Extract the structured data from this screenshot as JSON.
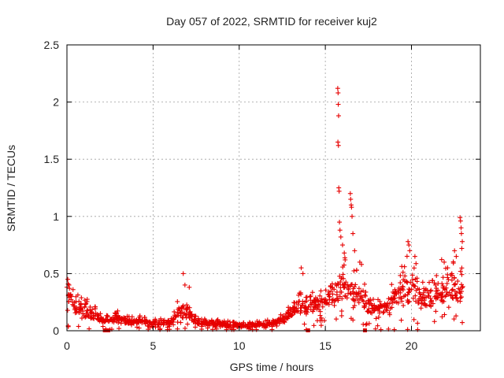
{
  "chart_data": {
    "type": "scatter",
    "title": "Day 057 of 2022, SRMTID for receiver kuj2",
    "xlabel": "GPS time / hours",
    "ylabel": "SRMTID / TECUs",
    "xlim": [
      0,
      24
    ],
    "ylim": [
      0,
      2.5
    ],
    "xticks": [
      0,
      5,
      10,
      15,
      20
    ],
    "yticks": [
      0,
      0.5,
      1,
      1.5,
      2,
      2.5
    ],
    "xtick_labels": [
      "0",
      "5",
      "10",
      "15",
      "20"
    ],
    "ytick_labels": [
      "0",
      "0.5",
      "1",
      "1.5",
      "2",
      "2.5"
    ],
    "grid": true,
    "series": [
      {
        "name": "SRMTID",
        "marker": "+",
        "color": "#e60000",
        "envelope": [
          [
            0.0,
            0.18,
            0.36
          ],
          [
            0.5,
            0.15,
            0.28
          ],
          [
            1.0,
            0.12,
            0.22
          ],
          [
            1.5,
            0.1,
            0.18
          ],
          [
            2.0,
            0.08,
            0.12
          ],
          [
            2.5,
            0.07,
            0.1
          ],
          [
            3.0,
            0.08,
            0.14
          ],
          [
            3.5,
            0.06,
            0.1
          ],
          [
            4.0,
            0.06,
            0.1
          ],
          [
            4.5,
            0.06,
            0.1
          ],
          [
            5.0,
            0.05,
            0.08
          ],
          [
            5.5,
            0.05,
            0.1
          ],
          [
            6.0,
            0.05,
            0.08
          ],
          [
            6.5,
            0.12,
            0.25
          ],
          [
            7.0,
            0.1,
            0.2
          ],
          [
            7.5,
            0.06,
            0.1
          ],
          [
            8.0,
            0.05,
            0.08
          ],
          [
            8.5,
            0.05,
            0.08
          ],
          [
            9.0,
            0.04,
            0.07
          ],
          [
            9.5,
            0.03,
            0.06
          ],
          [
            10.0,
            0.03,
            0.06
          ],
          [
            10.5,
            0.03,
            0.06
          ],
          [
            11.0,
            0.04,
            0.07
          ],
          [
            11.5,
            0.04,
            0.07
          ],
          [
            12.0,
            0.05,
            0.09
          ],
          [
            12.5,
            0.07,
            0.12
          ],
          [
            13.0,
            0.12,
            0.22
          ],
          [
            13.5,
            0.18,
            0.3
          ],
          [
            14.0,
            0.15,
            0.24
          ],
          [
            14.5,
            0.18,
            0.28
          ],
          [
            15.0,
            0.2,
            0.3
          ],
          [
            15.5,
            0.25,
            0.45
          ],
          [
            16.0,
            0.28,
            0.5
          ],
          [
            16.5,
            0.25,
            0.45
          ],
          [
            17.0,
            0.22,
            0.4
          ],
          [
            17.5,
            0.16,
            0.26
          ],
          [
            18.0,
            0.15,
            0.22
          ],
          [
            18.5,
            0.16,
            0.25
          ],
          [
            19.0,
            0.22,
            0.35
          ],
          [
            19.5,
            0.25,
            0.45
          ],
          [
            20.0,
            0.25,
            0.5
          ],
          [
            20.5,
            0.22,
            0.4
          ],
          [
            21.0,
            0.2,
            0.35
          ],
          [
            21.5,
            0.25,
            0.42
          ],
          [
            22.0,
            0.25,
            0.5
          ],
          [
            22.5,
            0.25,
            0.5
          ],
          [
            23.0,
            0.2,
            0.4
          ]
        ],
        "spikes": [
          [
            0.05,
            0.45
          ],
          [
            0.12,
            0.4
          ],
          [
            6.75,
            0.5
          ],
          [
            6.85,
            0.4
          ],
          [
            7.1,
            0.38
          ],
          [
            13.6,
            0.55
          ],
          [
            13.7,
            0.5
          ],
          [
            15.72,
            2.12
          ],
          [
            15.74,
            2.08
          ],
          [
            15.75,
            1.98
          ],
          [
            15.77,
            1.88
          ],
          [
            15.73,
            1.65
          ],
          [
            15.76,
            1.62
          ],
          [
            15.78,
            1.25
          ],
          [
            15.8,
            1.22
          ],
          [
            15.82,
            0.95
          ],
          [
            15.85,
            0.88
          ],
          [
            15.9,
            0.82
          ],
          [
            16.0,
            0.75
          ],
          [
            16.1,
            0.68
          ],
          [
            16.15,
            0.62
          ],
          [
            16.45,
            1.2
          ],
          [
            16.47,
            1.15
          ],
          [
            16.5,
            1.1
          ],
          [
            16.52,
            1.08
          ],
          [
            16.55,
            1.0
          ],
          [
            16.6,
            0.85
          ],
          [
            16.7,
            0.7
          ],
          [
            17.0,
            0.6
          ],
          [
            17.1,
            0.58
          ],
          [
            19.8,
            0.78
          ],
          [
            19.85,
            0.75
          ],
          [
            19.9,
            0.7
          ],
          [
            20.2,
            0.65
          ],
          [
            21.9,
            0.6
          ],
          [
            22.1,
            0.55
          ],
          [
            22.5,
            0.7
          ],
          [
            22.6,
            0.65
          ],
          [
            22.82,
            0.99
          ],
          [
            22.85,
            0.96
          ],
          [
            22.88,
            0.9
          ],
          [
            22.9,
            0.85
          ],
          [
            22.95,
            0.78
          ],
          [
            22.92,
            0.72
          ]
        ]
      }
    ],
    "flags": [
      2.2,
      2.4,
      14.0,
      17.3
    ]
  }
}
